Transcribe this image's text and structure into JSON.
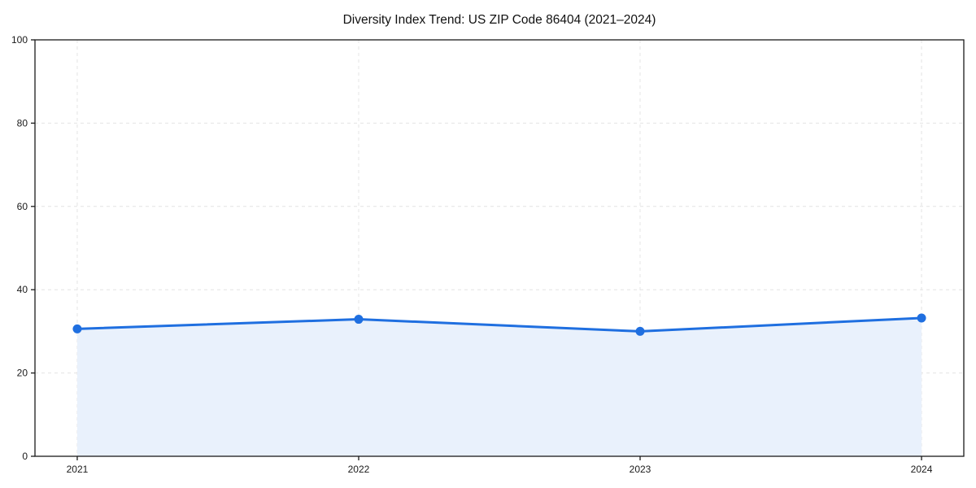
{
  "chart_data": {
    "type": "area",
    "title": "Diversity Index Trend: US ZIP Code 86404 (2021–2024)",
    "x": [
      2021,
      2022,
      2023,
      2024
    ],
    "series": [
      {
        "name": "Diversity Index",
        "values": [
          30.6,
          32.9,
          30.0,
          33.2
        ]
      }
    ],
    "xlabel": "",
    "ylabel": "",
    "ylim": [
      0,
      100
    ],
    "yticks": [
      0,
      20,
      40,
      60,
      80,
      100
    ],
    "xticks": [
      "2021",
      "2022",
      "2023",
      "2024"
    ],
    "grid": true,
    "grid_style": "dashed",
    "legend": "none",
    "marker": "circle",
    "colors": {
      "line": "#1f6fe0",
      "marker": "#1f6fe0",
      "fill": "#e9f1fc",
      "grid": "#e4e4e4",
      "axis": "#1a1a1a",
      "text": "#1a1a1a",
      "background": "#ffffff"
    }
  }
}
